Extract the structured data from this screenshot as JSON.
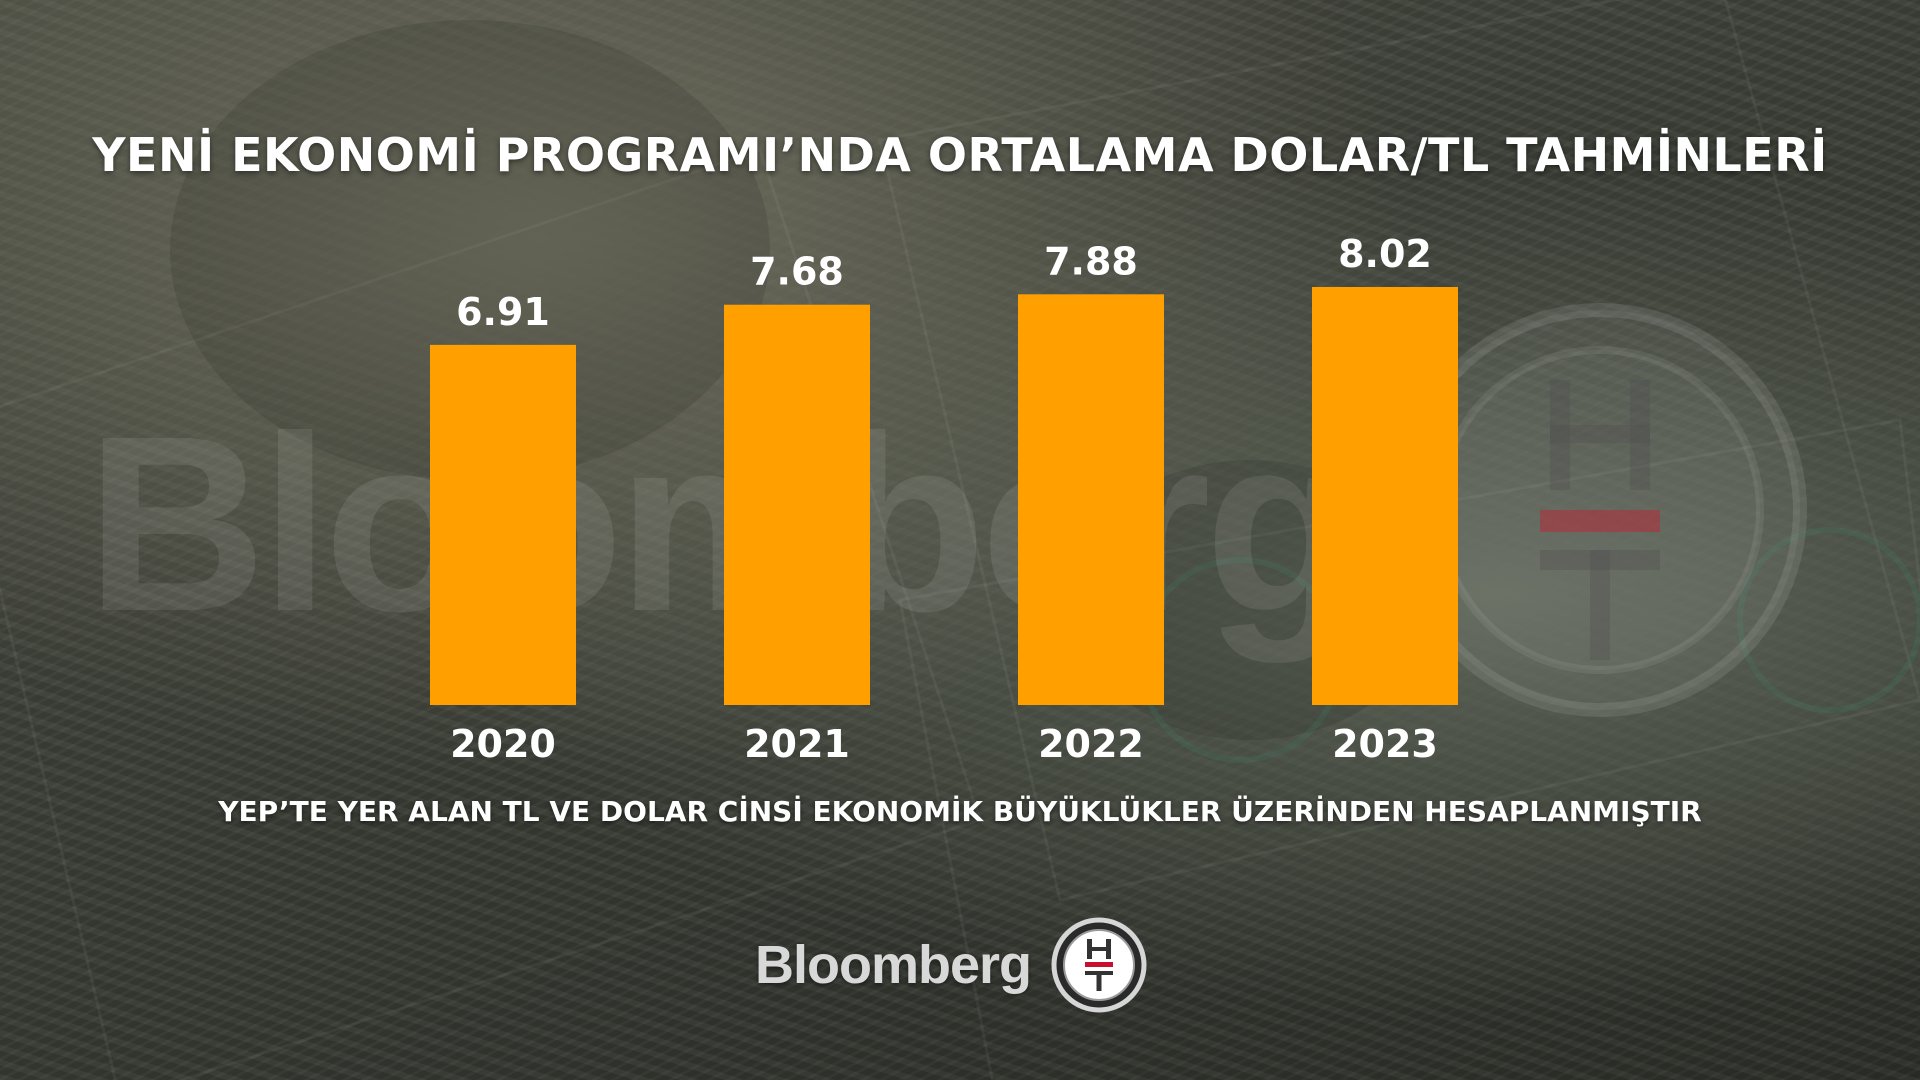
{
  "chart_data": {
    "type": "bar",
    "title": "YENİ EKONOMİ PROGRAMI’NDA ORTALAMA DOLAR/TL TAHMİNLERİ",
    "categories": [
      "2020",
      "2021",
      "2022",
      "2023"
    ],
    "values": [
      6.91,
      7.68,
      7.88,
      8.02
    ],
    "data_labels": [
      "6.91",
      "7.68",
      "7.88",
      "8.02"
    ],
    "xlabel": "",
    "ylabel": "",
    "ylim": [
      0,
      8.02
    ],
    "grid": false,
    "legend": "none",
    "bar_color": "#FFA000"
  },
  "footnote": "YEP’TE YER ALAN TL VE DOLAR CİNSİ EKONOMİK BÜYÜKLÜKLER ÜZERİNDEN HESAPLANMIŞTIR",
  "brand": {
    "name": "Bloomberg",
    "logo_letters": "HT",
    "logo_icon": "ht-logo-icon",
    "watermark_text": "Bloomberg"
  },
  "colors": {
    "text": "#FFFFFF",
    "logo_red": "#C8102E",
    "brand_text": "#D8D8D8"
  }
}
